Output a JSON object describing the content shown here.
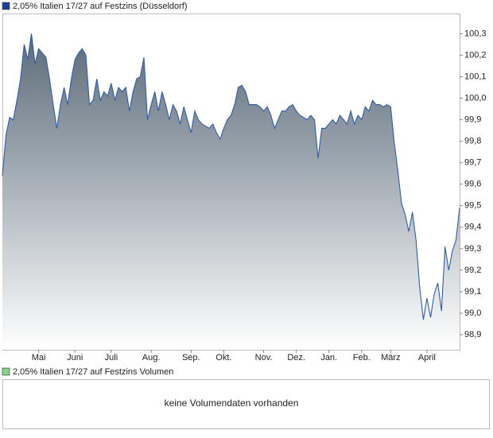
{
  "chart_data": {
    "type": "area",
    "title": "2,05% Italien 17/27 auf Festzins (Düsseldorf)",
    "legend_color": "#1f3f99",
    "color": "#2f5cb0",
    "fill_top": "#5b6b79",
    "values": [
      99.64,
      99.83,
      99.91,
      99.9,
      99.99,
      100.09,
      100.25,
      100.18,
      100.3,
      100.16,
      100.23,
      100.21,
      100.19,
      100.09,
      99.97,
      99.86,
      99.97,
      100.05,
      99.97,
      100.09,
      100.18,
      100.21,
      100.23,
      100.2,
      99.97,
      99.99,
      100.09,
      99.99,
      100.03,
      100.01,
      100.07,
      99.99,
      100.05,
      100.03,
      100.05,
      99.94,
      100.03,
      100.09,
      100.1,
      100.19,
      99.9,
      99.97,
      100.03,
      99.94,
      100.03,
      99.97,
      99.9,
      99.97,
      99.94,
      99.88,
      99.96,
      99.9,
      99.84,
      99.94,
      99.9,
      99.88,
      99.87,
      99.86,
      99.88,
      99.84,
      99.81,
      99.86,
      99.9,
      99.92,
      99.97,
      100.05,
      100.06,
      100.03,
      99.97,
      99.97,
      99.97,
      99.96,
      99.94,
      99.96,
      99.92,
      99.86,
      99.9,
      99.94,
      99.94,
      99.96,
      99.97,
      99.94,
      99.92,
      99.91,
      99.9,
      99.92,
      99.9,
      99.72,
      99.86,
      99.86,
      99.88,
      99.9,
      99.88,
      99.92,
      99.9,
      99.88,
      99.94,
      99.88,
      99.92,
      99.9,
      99.96,
      99.94,
      99.99,
      99.97,
      99.97,
      99.96,
      99.97,
      99.96,
      99.79,
      99.66,
      99.51,
      99.46,
      99.38,
      99.47,
      99.34,
      99.12,
      98.97,
      99.07,
      98.98,
      99.09,
      99.14,
      99.01,
      99.31,
      99.2,
      99.29,
      99.34,
      99.49
    ],
    "xlim": [
      0,
      126
    ],
    "xticks": [
      {
        "value": 10,
        "label": "Mai"
      },
      {
        "value": 20,
        "label": "Juni"
      },
      {
        "value": 30,
        "label": "Juli"
      },
      {
        "value": 41,
        "label": "Aug."
      },
      {
        "value": 52,
        "label": "Sep."
      },
      {
        "value": 61,
        "label": "Okt."
      },
      {
        "value": 72,
        "label": "Nov."
      },
      {
        "value": 81,
        "label": "Dez."
      },
      {
        "value": 90,
        "label": "Jan."
      },
      {
        "value": 99,
        "label": "Feb."
      },
      {
        "value": 107,
        "label": "März"
      },
      {
        "value": 117,
        "label": "April"
      }
    ],
    "ylim": [
      98.83,
      100.39
    ],
    "yticks": [
      {
        "value": 98.9,
        "label": "98,9"
      },
      {
        "value": 99.0,
        "label": "99,0"
      },
      {
        "value": 99.1,
        "label": "99,1"
      },
      {
        "value": 99.2,
        "label": "99,2"
      },
      {
        "value": 99.3,
        "label": "99,3"
      },
      {
        "value": 99.4,
        "label": "99,4"
      },
      {
        "value": 99.5,
        "label": "99,5"
      },
      {
        "value": 99.6,
        "label": "99,6"
      },
      {
        "value": 99.7,
        "label": "99,7"
      },
      {
        "value": 99.8,
        "label": "99,8"
      },
      {
        "value": 99.9,
        "label": "99,9"
      },
      {
        "value": 100.0,
        "label": "100,0"
      },
      {
        "value": 100.1,
        "label": "100,1"
      },
      {
        "value": 100.2,
        "label": "100,2"
      },
      {
        "value": 100.3,
        "label": "100,3"
      }
    ]
  },
  "volume_panel": {
    "title": "2,05% Italien 17/27 auf Festzins Volumen",
    "legend_color": "#86d486",
    "message": "keine Volumendaten vorhanden"
  }
}
